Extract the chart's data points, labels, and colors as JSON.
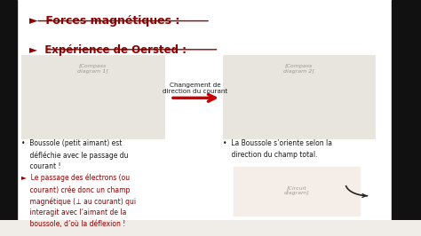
{
  "bg_color": "#f0ede8",
  "title1": "►  Forces magnétiques :",
  "title2": "►  Expérience de Oersted :",
  "title_color": "#8b0000",
  "bullet1_text": "•  Boussole (petit aimant) est\n    défléchie avec le passage du\n    courant !",
  "bullet1_color": "#1a1a1a",
  "bullet2_color": "#8b0000",
  "right_bullet": "•  La Boussole s’oriente selon la\n    direction du champ total.",
  "right_bullet_color": "#1a1a1a",
  "changement_text": "Changement de\ndirection du courant",
  "changement_color": "#1a1a1a",
  "arrow_color": "#cc0000",
  "content_bg": "#ffffff",
  "black_color": "#111111"
}
